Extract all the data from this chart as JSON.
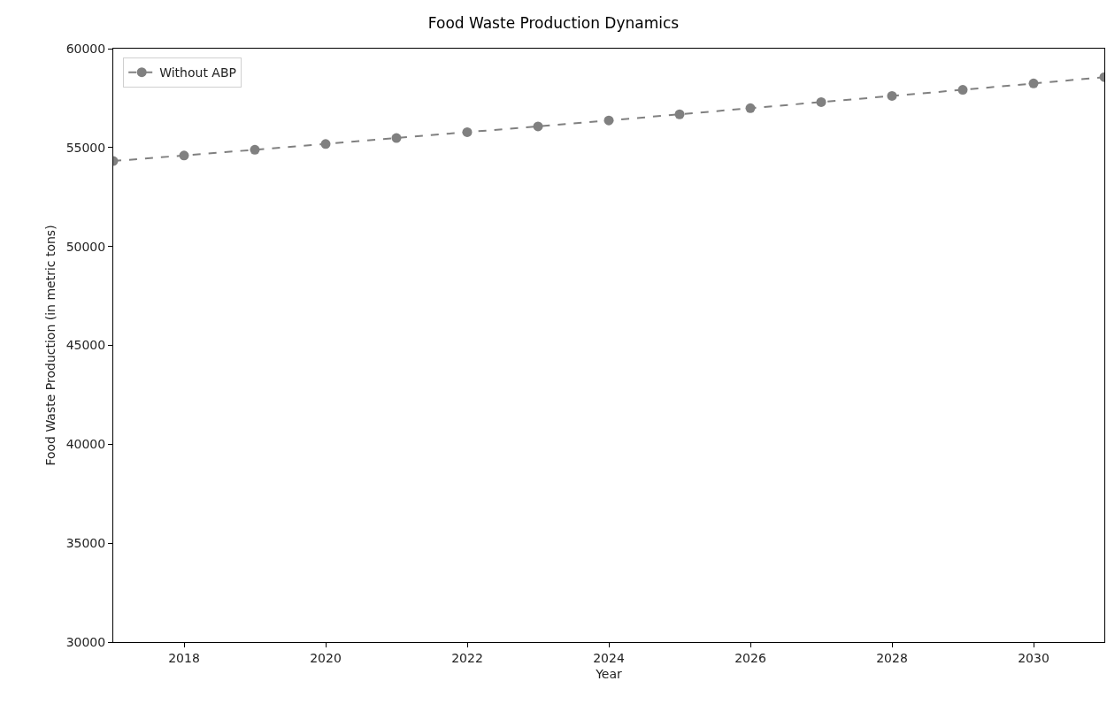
{
  "chart_data": {
    "type": "line",
    "title": "Food Waste Production Dynamics",
    "xlabel": "Year",
    "ylabel": "Food Waste Production (in metric tons)",
    "x": [
      2017,
      2018,
      2019,
      2020,
      2021,
      2022,
      2023,
      2024,
      2025,
      2026,
      2027,
      2028,
      2029,
      2030,
      2031
    ],
    "series": [
      {
        "name": "Without ABP",
        "color": "#808080",
        "values": [
          54320,
          54600,
          54890,
          55180,
          55480,
          55780,
          56070,
          56370,
          56680,
          56990,
          57300,
          57610,
          57920,
          58240,
          58560
        ]
      }
    ],
    "xlim": [
      2017,
      2031
    ],
    "xticks": [
      2018,
      2020,
      2022,
      2024,
      2026,
      2028,
      2030
    ],
    "ylim": [
      30000,
      60000
    ],
    "yticks": [
      30000,
      35000,
      40000,
      45000,
      50000,
      55000,
      60000
    ],
    "marker": "circle",
    "line_style": "dashed",
    "legend": "top left"
  }
}
